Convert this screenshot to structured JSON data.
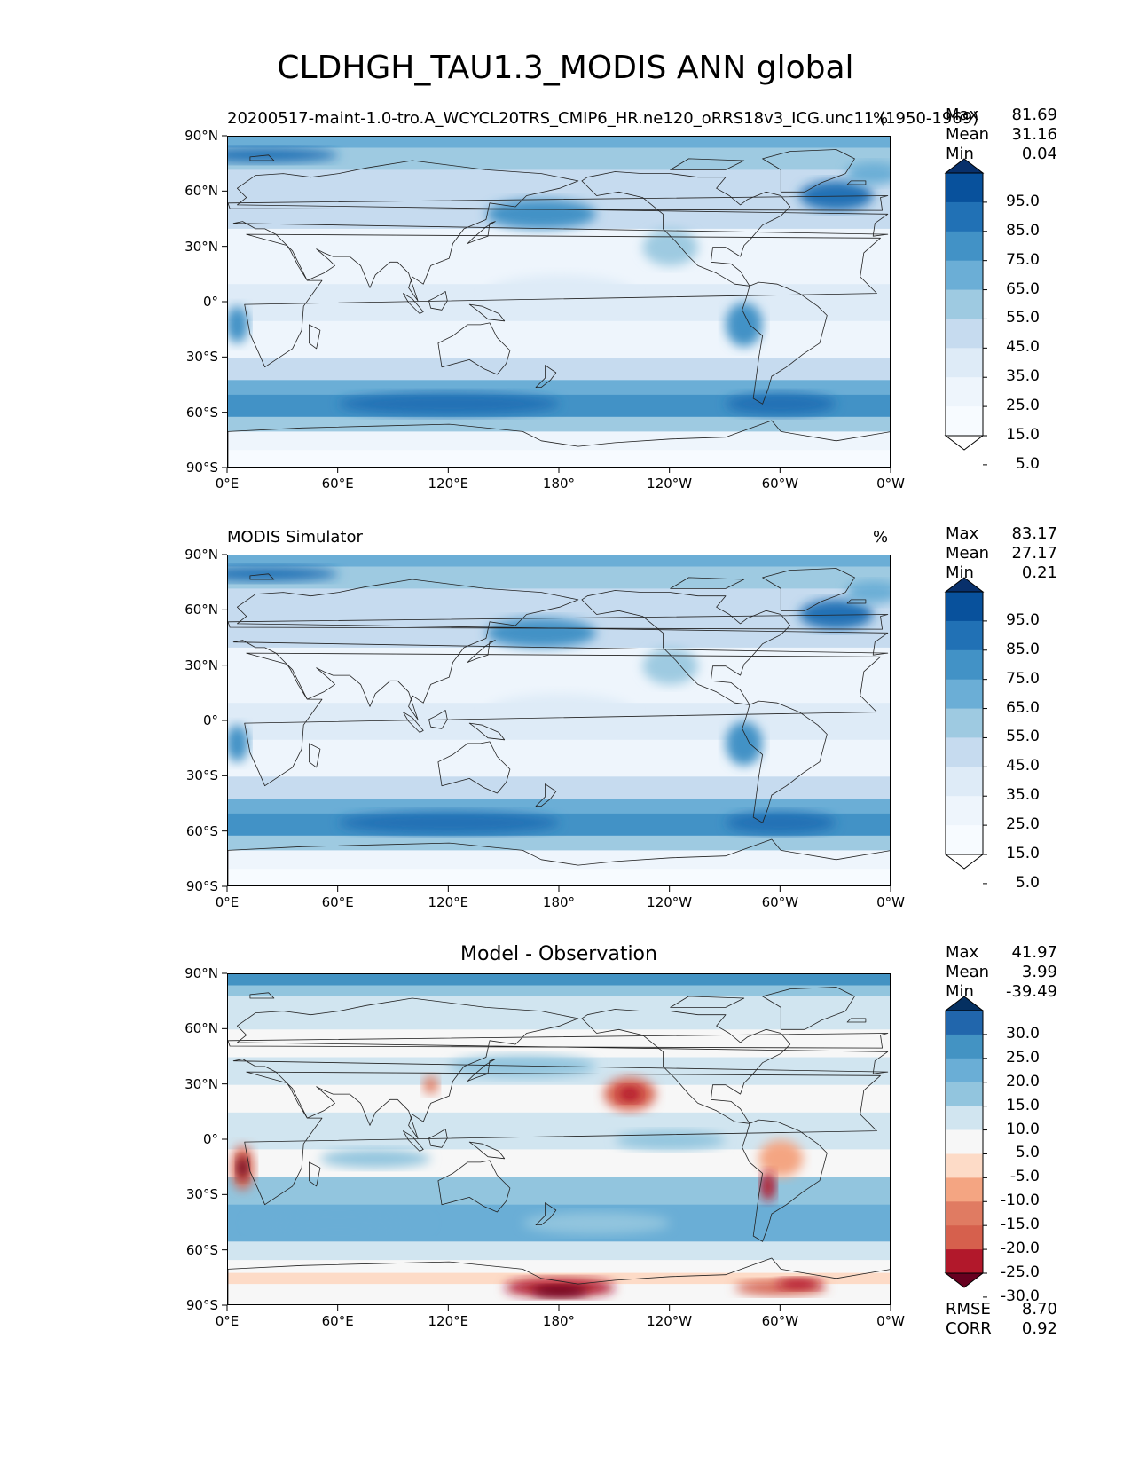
{
  "title": "CLDHGH_TAU1.3_MODIS ANN global",
  "axes": {
    "lat_ticks": [
      "90°N",
      "60°N",
      "30°N",
      "0°",
      "30°S",
      "60°S",
      "90°S"
    ],
    "lon_ticks": [
      "0°E",
      "60°E",
      "120°E",
      "180°",
      "120°W",
      "60°W",
      "0°W"
    ]
  },
  "panels": [
    {
      "title_left": "20200517-maint-1.0-tro.A_WCYCL20TRS_CMIP6_HR.ne120_oRRS18v3_ICG.unc11 (1950-1969)",
      "title_center": "",
      "units": "%",
      "stats": [
        {
          "label": "Max",
          "value": "81.69"
        },
        {
          "label": "Mean",
          "value": "31.16"
        },
        {
          "label": "Min",
          "value": "0.04"
        }
      ],
      "colorbar": [
        "95.0",
        "85.0",
        "75.0",
        "65.0",
        "55.0",
        "45.0",
        "35.0",
        "25.0",
        "15.0",
        "5.0"
      ],
      "colors": [
        "#08306b",
        "#08519c",
        "#2171b5",
        "#4292c6",
        "#6baed6",
        "#9ecae1",
        "#c6dbef",
        "#deebf7",
        "#eef5fc",
        "#f7fbff",
        "#ffffff"
      ]
    },
    {
      "title_left": "MODIS Simulator",
      "title_center": "",
      "units": "%",
      "stats": [
        {
          "label": "Max",
          "value": "83.17"
        },
        {
          "label": "Mean",
          "value": "27.17"
        },
        {
          "label": "Min",
          "value": "0.21"
        }
      ],
      "colorbar": [
        "95.0",
        "85.0",
        "75.0",
        "65.0",
        "55.0",
        "45.0",
        "35.0",
        "25.0",
        "15.0",
        "5.0"
      ],
      "colors": [
        "#08306b",
        "#08519c",
        "#2171b5",
        "#4292c6",
        "#6baed6",
        "#9ecae1",
        "#c6dbef",
        "#deebf7",
        "#eef5fc",
        "#f7fbff",
        "#ffffff"
      ]
    },
    {
      "title_left": "",
      "title_center": "Model - Observation",
      "units": "",
      "stats": [
        {
          "label": "Max",
          "value": "41.97"
        },
        {
          "label": "Mean",
          "value": "3.99"
        },
        {
          "label": "Min",
          "value": "-39.49"
        }
      ],
      "colorbar": [
        "30.0",
        "25.0",
        "20.0",
        "15.0",
        "10.0",
        "5.0",
        "-5.0",
        "-10.0",
        "-15.0",
        "-20.0",
        "-25.0",
        "-30.0"
      ],
      "colors": [
        "#053061",
        "#2166ac",
        "#4393c3",
        "#6aaed6",
        "#92c5de",
        "#d1e5f0",
        "#f7f7f7",
        "#fddbc7",
        "#f4a582",
        "#e07b62",
        "#d6604d",
        "#b2182b",
        "#67001f"
      ],
      "metrics": [
        {
          "label": "RMSE",
          "value": "8.70"
        },
        {
          "label": "CORR",
          "value": "0.92"
        }
      ]
    }
  ],
  "chart_data": [
    {
      "type": "heatmap",
      "title": "20200517-maint-1.0-tro.A_WCYCL20TRS_CMIP6_HR.ne120_oRRS18v3_ICG.unc11 (1950-1969)",
      "units": "%",
      "xlim": [
        0,
        360
      ],
      "ylim": [
        -90,
        90
      ],
      "x_ticks": [
        "0°E",
        "60°E",
        "120°E",
        "180°",
        "120°W",
        "60°W",
        "0°W"
      ],
      "y_ticks": [
        "90°N",
        "60°N",
        "30°N",
        "0°",
        "30°S",
        "60°S",
        "90°S"
      ],
      "levels": [
        5,
        15,
        25,
        35,
        45,
        55,
        65,
        75,
        85,
        95
      ],
      "stats": {
        "max": 81.69,
        "mean": 31.16,
        "min": 0.04
      }
    },
    {
      "type": "heatmap",
      "title": "MODIS Simulator",
      "units": "%",
      "xlim": [
        0,
        360
      ],
      "ylim": [
        -90,
        90
      ],
      "x_ticks": [
        "0°E",
        "60°E",
        "120°E",
        "180°",
        "120°W",
        "60°W",
        "0°W"
      ],
      "y_ticks": [
        "90°N",
        "60°N",
        "30°N",
        "0°",
        "30°S",
        "60°S",
        "90°S"
      ],
      "levels": [
        5,
        15,
        25,
        35,
        45,
        55,
        65,
        75,
        85,
        95
      ],
      "stats": {
        "max": 83.17,
        "mean": 27.17,
        "min": 0.21
      }
    },
    {
      "type": "heatmap",
      "title": "Model - Observation",
      "xlim": [
        0,
        360
      ],
      "ylim": [
        -90,
        90
      ],
      "x_ticks": [
        "0°E",
        "60°E",
        "120°E",
        "180°",
        "120°W",
        "60°W",
        "0°W"
      ],
      "y_ticks": [
        "90°N",
        "60°N",
        "30°N",
        "0°",
        "30°S",
        "60°S",
        "90°S"
      ],
      "levels": [
        -30,
        -25,
        -20,
        -15,
        -10,
        -5,
        5,
        10,
        15,
        20,
        25,
        30
      ],
      "stats": {
        "max": 41.97,
        "mean": 3.99,
        "min": -39.49
      },
      "metrics": {
        "rmse": 8.7,
        "corr": 0.92
      }
    }
  ]
}
